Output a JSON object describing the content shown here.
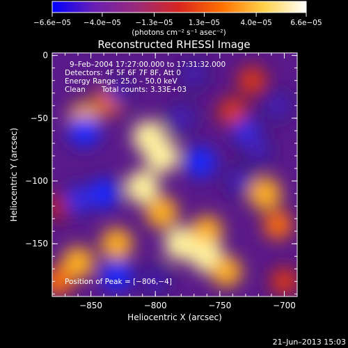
{
  "chart_data": {
    "type": "heatmap",
    "title": "Reconstructed RHESSI Image",
    "xlabel": "Heliocentric X (arcsec)",
    "ylabel": "Heliocentric Y (arcsec)",
    "xlim": [
      -880,
      -690
    ],
    "ylim": [
      -192,
      2
    ],
    "x_ticks": [
      -850,
      -800,
      -750,
      -700
    ],
    "x_tick_labels": [
      "−850",
      "−800",
      "−750",
      "−700"
    ],
    "y_ticks": [
      0,
      -50,
      -100,
      -150
    ],
    "y_tick_labels": [
      "0",
      "−50",
      "−100",
      "−150"
    ],
    "colorbar": {
      "range": [
        -6.6e-05,
        6.6e-05
      ],
      "tick_values": [
        -6.6e-05,
        -4e-05,
        -1.3e-05,
        1.3e-05,
        4e-05,
        6.6e-05
      ],
      "tick_labels": [
        "−6.6e−05",
        "−4.0e−05",
        "−1.3e−05",
        "1.3e−05",
        "4.0e−05",
        "6.6e−05"
      ],
      "units": "(photons cm⁻² s⁻¹ asec⁻²)",
      "colors": [
        "#0000ff",
        "#6a1fb3",
        "#9a2a7a",
        "#d8261f",
        "#ff7000",
        "#ffd24a",
        "#ffffff"
      ]
    },
    "annotations": {
      "time": "9–Feb–2004 17:27:00.000 to 17:31:32.000",
      "detectors": "Detectors: 4F 5F 6F 7F 8F, Att 0",
      "energy": "Energy Range: 25.0 – 50.0 keV",
      "method": "Clean",
      "counts": "Total counts: 3.33E+03",
      "peak": "Position of Peak = [−806,−4]"
    },
    "peak_position": [
      -806,
      -4
    ],
    "blobs": [
      {
        "x": -805,
        "y": -65,
        "v": 0.92
      },
      {
        "x": -795,
        "y": -80,
        "v": 0.98
      },
      {
        "x": -810,
        "y": -105,
        "v": 0.95
      },
      {
        "x": -795,
        "y": -125,
        "v": 0.85
      },
      {
        "x": -780,
        "y": -150,
        "v": 0.95
      },
      {
        "x": -760,
        "y": -140,
        "v": 0.78
      },
      {
        "x": -760,
        "y": -160,
        "v": 0.9
      },
      {
        "x": -745,
        "y": -172,
        "v": 0.75
      },
      {
        "x": -830,
        "y": -150,
        "v": 0.82
      },
      {
        "x": -860,
        "y": -165,
        "v": 0.85
      },
      {
        "x": -875,
        "y": -180,
        "v": 0.6
      },
      {
        "x": -855,
        "y": -50,
        "v": 0.82
      },
      {
        "x": -835,
        "y": -35,
        "v": 0.7
      },
      {
        "x": -740,
        "y": -45,
        "v": 0.55
      },
      {
        "x": -715,
        "y": -110,
        "v": 0.88
      },
      {
        "x": -705,
        "y": -135,
        "v": 0.6
      },
      {
        "x": -700,
        "y": -180,
        "v": 0.45
      },
      {
        "x": -725,
        "y": -20,
        "v": 0.5
      },
      {
        "x": -875,
        "y": -120,
        "v": 0.35
      },
      {
        "x": -855,
        "y": -60,
        "v": -0.85
      },
      {
        "x": -830,
        "y": -30,
        "v": -0.5
      },
      {
        "x": -780,
        "y": -50,
        "v": -0.55
      },
      {
        "x": -765,
        "y": -85,
        "v": -0.8
      },
      {
        "x": -840,
        "y": -110,
        "v": -0.75
      },
      {
        "x": -830,
        "y": -175,
        "v": -0.8
      },
      {
        "x": -860,
        "y": -115,
        "v": -0.7
      },
      {
        "x": -730,
        "y": -60,
        "v": -0.65
      },
      {
        "x": -735,
        "y": -100,
        "v": -0.55
      },
      {
        "x": -720,
        "y": -75,
        "v": -0.5
      },
      {
        "x": -800,
        "y": -180,
        "v": -0.4
      },
      {
        "x": -705,
        "y": -40,
        "v": -0.55
      },
      {
        "x": -770,
        "y": -15,
        "v": -0.45
      }
    ]
  },
  "footer": {
    "timestamp": "21–Jun–2013 15:03"
  }
}
